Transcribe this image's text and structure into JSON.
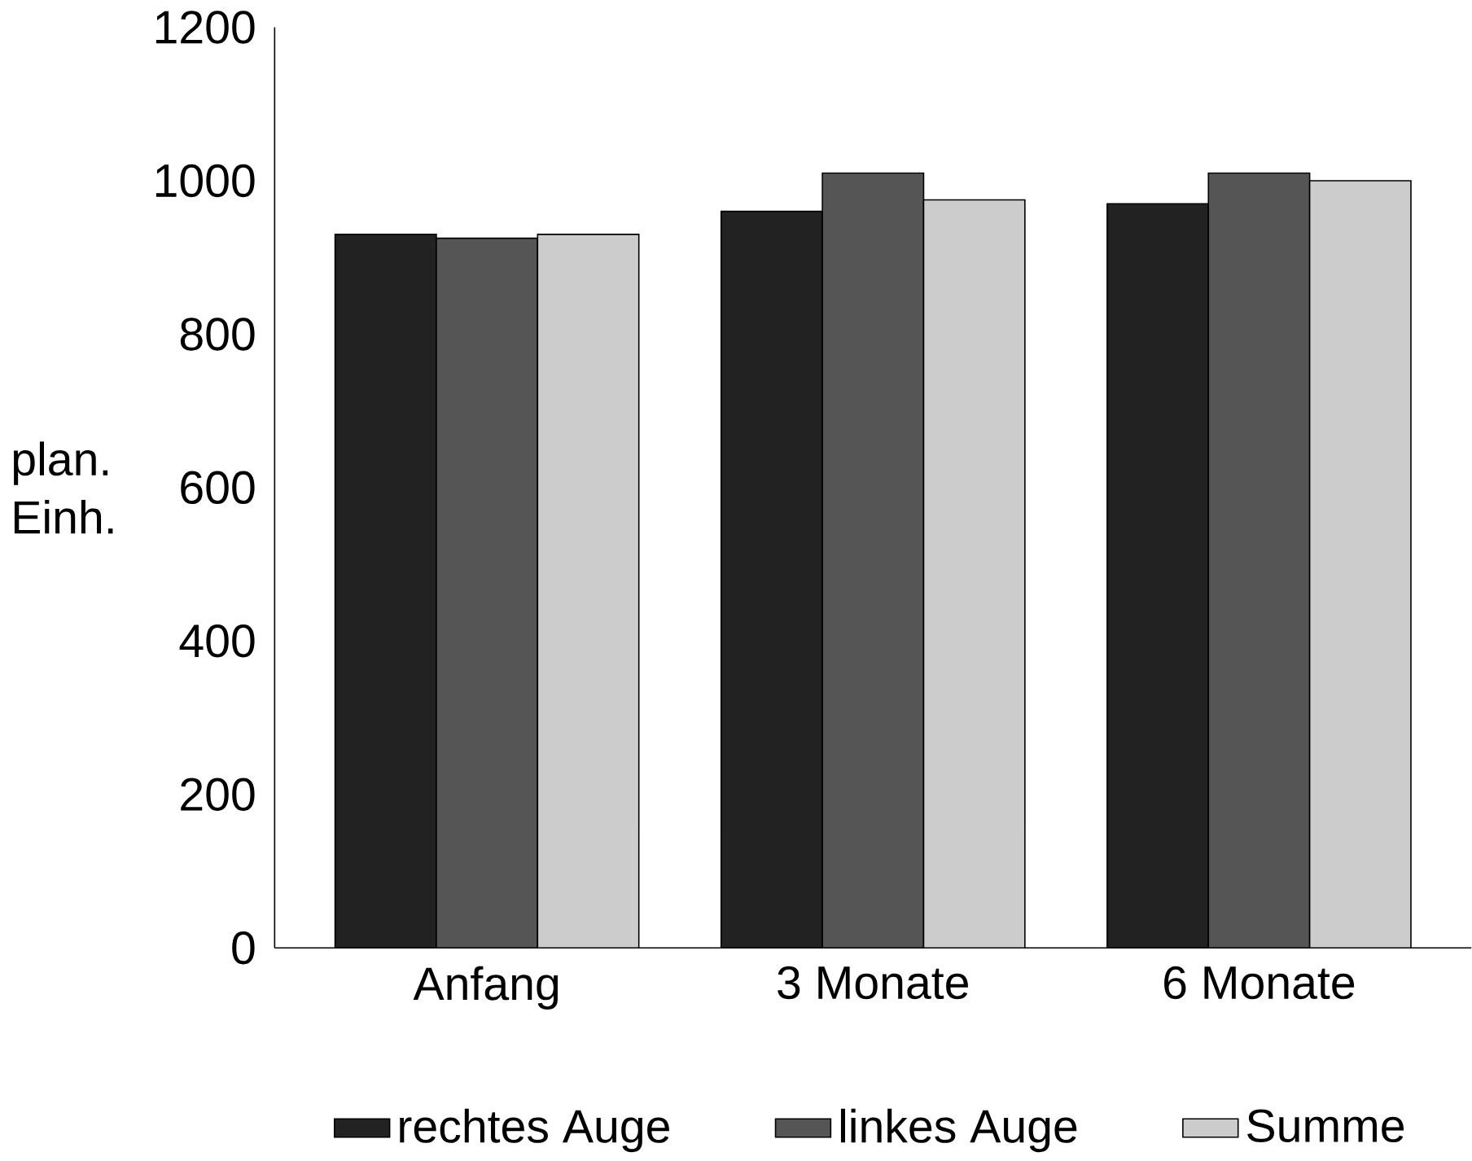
{
  "chart_data": {
    "type": "bar",
    "ylabel": "plan. Einh.",
    "categories": [
      "Anfang",
      "3 Monate",
      "6 Monate"
    ],
    "series": [
      {
        "name": "rechtes Auge",
        "color": "#222222",
        "values": [
          930,
          960,
          970
        ]
      },
      {
        "name": "linkes Auge",
        "color": "#555555",
        "values": [
          925,
          1010,
          1010
        ]
      },
      {
        "name": "Summe",
        "color": "#cccccc",
        "values": [
          930,
          975,
          1000
        ]
      }
    ],
    "ylim": [
      0,
      1200
    ],
    "yticks": [
      0,
      200,
      400,
      600,
      800,
      1000,
      1200
    ],
    "grid": false,
    "legend": "bottom"
  }
}
